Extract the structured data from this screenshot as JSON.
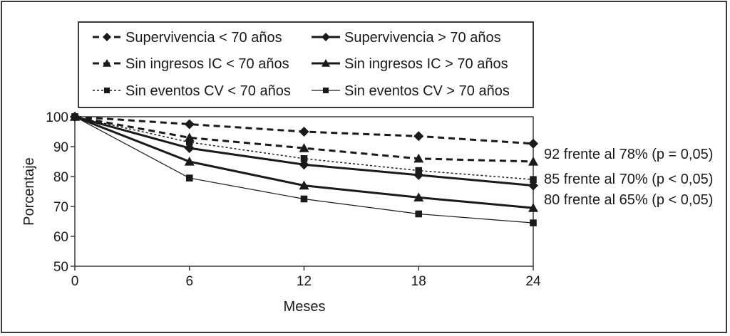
{
  "chart_data": {
    "type": "line",
    "title": "",
    "xlabel": "Meses",
    "ylabel": "Porcentaje",
    "xlim": [
      0,
      24
    ],
    "ylim": [
      50,
      100
    ],
    "x": [
      0,
      6,
      12,
      18,
      24
    ],
    "xticks": [
      "0",
      "6",
      "12",
      "18",
      "24"
    ],
    "yticks": [
      "50",
      "60",
      "70",
      "80",
      "90",
      "100"
    ],
    "grid": false,
    "legend_position": "top",
    "series": [
      {
        "name": "Supervivencia < 70 años",
        "marker": "diamond",
        "line": "dashed",
        "values": [
          100,
          97.5,
          95,
          93.5,
          91
        ]
      },
      {
        "name": "Sin ingresos IC < 70 años",
        "marker": "triangle",
        "line": "dashed",
        "values": [
          100,
          93,
          89.5,
          86,
          85
        ]
      },
      {
        "name": "Sin eventos CV < 70 años",
        "marker": "square",
        "line": "dotted",
        "values": [
          100,
          91.5,
          86,
          82,
          79
        ]
      },
      {
        "name": "Supervivencia > 70 años",
        "marker": "diamond",
        "line": "solid-thick",
        "values": [
          100,
          89.5,
          84,
          80.5,
          77
        ]
      },
      {
        "name": "Sin ingresos IC > 70 años",
        "marker": "triangle",
        "line": "solid-thick",
        "values": [
          100,
          85,
          77,
          73,
          69.5
        ]
      },
      {
        "name": "Sin eventos CV > 70 años",
        "marker": "square",
        "line": "solid-thin",
        "values": [
          100,
          79.5,
          72.5,
          67.5,
          64.5
        ]
      }
    ],
    "annotations": [
      "92 frente al 78% (p = 0,05)",
      "85 frente al 70% (p < 0,05)",
      "80 frente al 65% (p < 0,05)"
    ],
    "colors": {
      "ink": "#1a1a1a",
      "frame": "#3a3a3a",
      "background": "#ffffff"
    }
  }
}
